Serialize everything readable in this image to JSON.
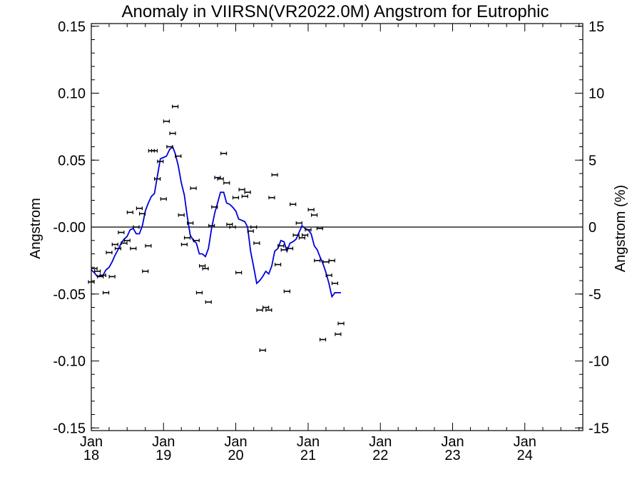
{
  "chart_data": {
    "type": "scatter",
    "title": "Anomaly in VIIRSN(VR2022.0M) Angstrom for Eutrophic",
    "ylabel": "Angstrom",
    "ylabel_right": "Angstrom (%)",
    "xlabel": "",
    "ylim": [
      -0.152,
      0.152
    ],
    "ylim_right": [
      -15.2,
      15.2
    ],
    "yticks": [
      {
        "value": 0.15,
        "label": "0.15"
      },
      {
        "value": 0.1,
        "label": "0.10"
      },
      {
        "value": 0.05,
        "label": "0.05"
      },
      {
        "value": 0.0,
        "label": "-0.00"
      },
      {
        "value": -0.05,
        "label": "-0.05"
      },
      {
        "value": -0.1,
        "label": "-0.10"
      },
      {
        "value": -0.15,
        "label": "-0.15"
      }
    ],
    "yticks_right": [
      {
        "value": 15,
        "label": "15"
      },
      {
        "value": 10,
        "label": "10"
      },
      {
        "value": 5,
        "label": "5"
      },
      {
        "value": 0,
        "label": "0"
      },
      {
        "value": -5,
        "label": "-5"
      },
      {
        "value": -10,
        "label": "-10"
      },
      {
        "value": -15,
        "label": "-15"
      }
    ],
    "xlim": [
      "2018-01-01",
      "2024-10-20"
    ],
    "xticks": [
      {
        "date": "2018-01-01",
        "line1": "Jan",
        "line2": "18"
      },
      {
        "date": "2019-01-01",
        "line1": "Jan",
        "line2": "19"
      },
      {
        "date": "2020-01-01",
        "line1": "Jan",
        "line2": "20"
      },
      {
        "date": "2021-01-01",
        "line1": "Jan",
        "line2": "21"
      },
      {
        "date": "2022-01-01",
        "line1": "Jan",
        "line2": "22"
      },
      {
        "date": "2023-01-01",
        "line1": "Jan",
        "line2": "23"
      },
      {
        "date": "2024-01-01",
        "line1": "Jan",
        "line2": "24"
      }
    ],
    "zero_line": true,
    "colors": {
      "points": "#000000",
      "smooth": "#0000dd",
      "axes": "#000000"
    },
    "series": [
      {
        "kind": "points_with_errorbars",
        "points": [
          {
            "x": "2018-01-01",
            "y": -0.041
          },
          {
            "x": "2018-01-16",
            "y": -0.031
          },
          {
            "x": "2018-02-01",
            "y": -0.033
          },
          {
            "x": "2018-02-16",
            "y": -0.037
          },
          {
            "x": "2018-03-01",
            "y": -0.036
          },
          {
            "x": "2018-03-16",
            "y": -0.049
          },
          {
            "x": "2018-04-01",
            "y": -0.019
          },
          {
            "x": "2018-04-16",
            "y": -0.037
          },
          {
            "x": "2018-05-01",
            "y": -0.013
          },
          {
            "x": "2018-05-16",
            "y": -0.016
          },
          {
            "x": "2018-06-01",
            "y": -0.004
          },
          {
            "x": "2018-06-16",
            "y": -0.012
          },
          {
            "x": "2018-07-01",
            "y": -0.01
          },
          {
            "x": "2018-07-16",
            "y": 0.011
          },
          {
            "x": "2018-08-01",
            "y": -0.016
          },
          {
            "x": "2018-08-16",
            "y": 0.0
          },
          {
            "x": "2018-09-01",
            "y": 0.014
          },
          {
            "x": "2018-09-16",
            "y": 0.01
          },
          {
            "x": "2018-10-01",
            "y": -0.033
          },
          {
            "x": "2018-10-16",
            "y": -0.014
          },
          {
            "x": "2018-11-01",
            "y": 0.057
          },
          {
            "x": "2018-11-16",
            "y": 0.057
          },
          {
            "x": "2018-12-01",
            "y": 0.036
          },
          {
            "x": "2018-12-16",
            "y": 0.049
          },
          {
            "x": "2019-01-01",
            "y": 0.021
          },
          {
            "x": "2019-01-16",
            "y": 0.079
          },
          {
            "x": "2019-02-01",
            "y": 0.06
          },
          {
            "x": "2019-02-16",
            "y": 0.07
          },
          {
            "x": "2019-03-01",
            "y": 0.09
          },
          {
            "x": "2019-03-16",
            "y": 0.053
          },
          {
            "x": "2019-04-01",
            "y": 0.009
          },
          {
            "x": "2019-04-16",
            "y": -0.013
          },
          {
            "x": "2019-05-01",
            "y": -0.008
          },
          {
            "x": "2019-05-16",
            "y": 0.003
          },
          {
            "x": "2019-06-01",
            "y": 0.029
          },
          {
            "x": "2019-06-16",
            "y": -0.01
          },
          {
            "x": "2019-07-01",
            "y": -0.049
          },
          {
            "x": "2019-07-16",
            "y": -0.029
          },
          {
            "x": "2019-08-01",
            "y": -0.031
          },
          {
            "x": "2019-08-16",
            "y": -0.056
          },
          {
            "x": "2019-09-01",
            "y": 0.001
          },
          {
            "x": "2019-09-16",
            "y": 0.015
          },
          {
            "x": "2019-10-01",
            "y": 0.037
          },
          {
            "x": "2019-10-16",
            "y": 0.036
          },
          {
            "x": "2019-11-01",
            "y": 0.055
          },
          {
            "x": "2019-11-16",
            "y": 0.033
          },
          {
            "x": "2019-12-01",
            "y": 0.002
          },
          {
            "x": "2019-12-16",
            "y": 0.0
          },
          {
            "x": "2020-01-01",
            "y": 0.022
          },
          {
            "x": "2020-01-16",
            "y": -0.034
          },
          {
            "x": "2020-02-01",
            "y": 0.028
          },
          {
            "x": "2020-02-16",
            "y": 0.023
          },
          {
            "x": "2020-03-01",
            "y": 0.026
          },
          {
            "x": "2020-03-16",
            "y": -0.003
          },
          {
            "x": "2020-04-01",
            "y": 0.0
          },
          {
            "x": "2020-04-16",
            "y": -0.012
          },
          {
            "x": "2020-05-01",
            "y": -0.062
          },
          {
            "x": "2020-05-16",
            "y": -0.092
          },
          {
            "x": "2020-06-01",
            "y": -0.06
          },
          {
            "x": "2020-06-16",
            "y": -0.062
          },
          {
            "x": "2020-07-01",
            "y": 0.022
          },
          {
            "x": "2020-07-16",
            "y": 0.039
          },
          {
            "x": "2020-08-01",
            "y": -0.028
          },
          {
            "x": "2020-08-16",
            "y": -0.014
          },
          {
            "x": "2020-09-01",
            "y": -0.017
          },
          {
            "x": "2020-09-16",
            "y": -0.048
          },
          {
            "x": "2020-10-01",
            "y": -0.016
          },
          {
            "x": "2020-10-16",
            "y": 0.017
          },
          {
            "x": "2020-11-01",
            "y": -0.006
          },
          {
            "x": "2020-11-16",
            "y": 0.003
          },
          {
            "x": "2020-12-01",
            "y": -0.008
          },
          {
            "x": "2020-12-16",
            "y": -0.006
          },
          {
            "x": "2021-01-01",
            "y": -0.002
          },
          {
            "x": "2021-01-16",
            "y": 0.013
          },
          {
            "x": "2021-02-01",
            "y": 0.009
          },
          {
            "x": "2021-02-16",
            "y": -0.025
          },
          {
            "x": "2021-03-01",
            "y": -0.001
          },
          {
            "x": "2021-03-16",
            "y": -0.084
          },
          {
            "x": "2021-04-01",
            "y": -0.026
          },
          {
            "x": "2021-04-16",
            "y": -0.036
          },
          {
            "x": "2021-05-01",
            "y": -0.025
          },
          {
            "x": "2021-05-16",
            "y": -0.042
          },
          {
            "x": "2021-06-01",
            "y": -0.08
          },
          {
            "x": "2021-06-16",
            "y": -0.072
          }
        ]
      },
      {
        "kind": "smoothed_line",
        "points": [
          {
            "x": "2018-01-01",
            "y": -0.032
          },
          {
            "x": "2018-01-16",
            "y": -0.034
          },
          {
            "x": "2018-02-01",
            "y": -0.037
          },
          {
            "x": "2018-02-16",
            "y": -0.036
          },
          {
            "x": "2018-03-01",
            "y": -0.036
          },
          {
            "x": "2018-03-16",
            "y": -0.032
          },
          {
            "x": "2018-04-01",
            "y": -0.03
          },
          {
            "x": "2018-04-16",
            "y": -0.026
          },
          {
            "x": "2018-05-01",
            "y": -0.021
          },
          {
            "x": "2018-05-16",
            "y": -0.017
          },
          {
            "x": "2018-06-01",
            "y": -0.012
          },
          {
            "x": "2018-06-16",
            "y": -0.009
          },
          {
            "x": "2018-07-01",
            "y": -0.007
          },
          {
            "x": "2018-07-16",
            "y": -0.002
          },
          {
            "x": "2018-08-01",
            "y": -0.001
          },
          {
            "x": "2018-08-16",
            "y": -0.005
          },
          {
            "x": "2018-09-01",
            "y": -0.005
          },
          {
            "x": "2018-09-16",
            "y": 0.001
          },
          {
            "x": "2018-10-01",
            "y": 0.012
          },
          {
            "x": "2018-10-16",
            "y": 0.018
          },
          {
            "x": "2018-11-01",
            "y": 0.023
          },
          {
            "x": "2018-11-16",
            "y": 0.025
          },
          {
            "x": "2018-12-01",
            "y": 0.038
          },
          {
            "x": "2018-12-16",
            "y": 0.051
          },
          {
            "x": "2019-01-01",
            "y": 0.052
          },
          {
            "x": "2019-01-16",
            "y": 0.053
          },
          {
            "x": "2019-02-01",
            "y": 0.058
          },
          {
            "x": "2019-02-16",
            "y": 0.06
          },
          {
            "x": "2019-03-01",
            "y": 0.055
          },
          {
            "x": "2019-03-16",
            "y": 0.046
          },
          {
            "x": "2019-04-01",
            "y": 0.033
          },
          {
            "x": "2019-04-16",
            "y": 0.024
          },
          {
            "x": "2019-05-01",
            "y": 0.008
          },
          {
            "x": "2019-05-16",
            "y": -0.006
          },
          {
            "x": "2019-06-01",
            "y": -0.01
          },
          {
            "x": "2019-06-16",
            "y": -0.012
          },
          {
            "x": "2019-07-01",
            "y": -0.02
          },
          {
            "x": "2019-07-16",
            "y": -0.02
          },
          {
            "x": "2019-08-01",
            "y": -0.022
          },
          {
            "x": "2019-08-16",
            "y": -0.016
          },
          {
            "x": "2019-09-01",
            "y": -0.001
          },
          {
            "x": "2019-09-16",
            "y": 0.01
          },
          {
            "x": "2019-10-01",
            "y": 0.018
          },
          {
            "x": "2019-10-16",
            "y": 0.026
          },
          {
            "x": "2019-11-01",
            "y": 0.026
          },
          {
            "x": "2019-11-16",
            "y": 0.018
          },
          {
            "x": "2019-12-01",
            "y": 0.017
          },
          {
            "x": "2019-12-16",
            "y": 0.015
          },
          {
            "x": "2020-01-01",
            "y": 0.012
          },
          {
            "x": "2020-01-16",
            "y": 0.006
          },
          {
            "x": "2020-02-01",
            "y": 0.005
          },
          {
            "x": "2020-02-16",
            "y": 0.004
          },
          {
            "x": "2020-03-01",
            "y": 0.0
          },
          {
            "x": "2020-03-16",
            "y": -0.018
          },
          {
            "x": "2020-04-01",
            "y": -0.03
          },
          {
            "x": "2020-04-16",
            "y": -0.042
          },
          {
            "x": "2020-05-01",
            "y": -0.04
          },
          {
            "x": "2020-05-16",
            "y": -0.037
          },
          {
            "x": "2020-06-01",
            "y": -0.033
          },
          {
            "x": "2020-06-16",
            "y": -0.035
          },
          {
            "x": "2020-07-01",
            "y": -0.029
          },
          {
            "x": "2020-07-16",
            "y": -0.018
          },
          {
            "x": "2020-08-01",
            "y": -0.016
          },
          {
            "x": "2020-08-16",
            "y": -0.01
          },
          {
            "x": "2020-09-01",
            "y": -0.011
          },
          {
            "x": "2020-09-16",
            "y": -0.018
          },
          {
            "x": "2020-10-01",
            "y": -0.012
          },
          {
            "x": "2020-10-16",
            "y": -0.011
          },
          {
            "x": "2020-11-01",
            "y": -0.009
          },
          {
            "x": "2020-11-16",
            "y": -0.004
          },
          {
            "x": "2020-12-01",
            "y": 0.001
          },
          {
            "x": "2020-12-16",
            "y": -0.001
          },
          {
            "x": "2021-01-01",
            "y": -0.002
          },
          {
            "x": "2021-01-16",
            "y": -0.005
          },
          {
            "x": "2021-02-01",
            "y": -0.014
          },
          {
            "x": "2021-02-16",
            "y": -0.017
          },
          {
            "x": "2021-03-01",
            "y": -0.022
          },
          {
            "x": "2021-03-16",
            "y": -0.027
          },
          {
            "x": "2021-04-01",
            "y": -0.034
          },
          {
            "x": "2021-04-16",
            "y": -0.042
          },
          {
            "x": "2021-05-01",
            "y": -0.052
          },
          {
            "x": "2021-05-16",
            "y": -0.049
          },
          {
            "x": "2021-06-01",
            "y": -0.049
          },
          {
            "x": "2021-06-16",
            "y": -0.049
          }
        ]
      }
    ]
  }
}
